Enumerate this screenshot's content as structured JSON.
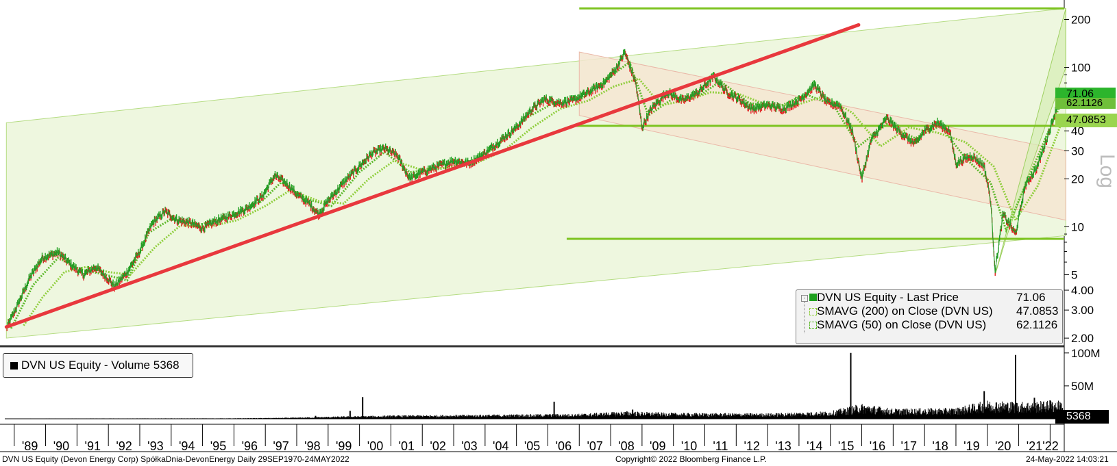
{
  "chart_data": [
    {
      "type": "line",
      "title": "",
      "ylabel": "Log",
      "yscale": "log",
      "ylim": [
        1.85,
        260
      ],
      "xlim": [
        1988.7,
        2022.45
      ],
      "y_ticks": [
        {
          "v": 2,
          "label": "2.00"
        },
        {
          "v": 3,
          "label": "3.00"
        },
        {
          "v": 4,
          "label": "4.00"
        },
        {
          "v": 5,
          "label": "5"
        },
        {
          "v": 10,
          "label": "10"
        },
        {
          "v": 20,
          "label": "20"
        },
        {
          "v": 30,
          "label": "30"
        },
        {
          "v": 40,
          "label": "40"
        },
        {
          "v": 100,
          "label": "100"
        },
        {
          "v": 200,
          "label": "200"
        }
      ],
      "x_ticks": [
        "'89",
        "'90",
        "'91",
        "'92",
        "'93",
        "'94",
        "'95",
        "'96",
        "'97",
        "'98",
        "'99",
        "'00",
        "'01",
        "'02",
        "'03",
        "'04",
        "'05",
        "'06",
        "'07",
        "'08",
        "'09",
        "'10",
        "'11",
        "'12",
        "'13",
        "'14",
        "'15",
        "'16",
        "'17",
        "'18",
        "'19",
        "'20",
        "'21",
        "'22"
      ],
      "series": [
        {
          "name": "DVN US Equity - Last Price",
          "color": "#1ea01e",
          "last": "71.06",
          "points": [
            [
              1988.75,
              2.3
            ],
            [
              1989.1,
              3.2
            ],
            [
              1989.5,
              4.8
            ],
            [
              1989.9,
              6.4
            ],
            [
              1990.4,
              6.9
            ],
            [
              1990.8,
              5.8
            ],
            [
              1991.2,
              5.0
            ],
            [
              1991.6,
              5.6
            ],
            [
              1992.0,
              4.7
            ],
            [
              1992.2,
              4.2
            ],
            [
              1992.6,
              5.2
            ],
            [
              1993.0,
              7.0
            ],
            [
              1993.4,
              10.5
            ],
            [
              1993.8,
              12.5
            ],
            [
              1994.2,
              11.0
            ],
            [
              1994.6,
              10.6
            ],
            [
              1995.0,
              9.8
            ],
            [
              1995.4,
              10.8
            ],
            [
              1995.9,
              11.8
            ],
            [
              1996.4,
              13.0
            ],
            [
              1996.9,
              15.5
            ],
            [
              1997.3,
              21.0
            ],
            [
              1997.7,
              18.5
            ],
            [
              1998.0,
              16.0
            ],
            [
              1998.4,
              14.0
            ],
            [
              1998.7,
              12.0
            ],
            [
              1999.0,
              14.5
            ],
            [
              1999.5,
              19.0
            ],
            [
              2000.0,
              24.0
            ],
            [
              2000.4,
              29.0
            ],
            [
              2000.8,
              31.0
            ],
            [
              2001.2,
              28.0
            ],
            [
              2001.6,
              20.0
            ],
            [
              2002.0,
              22.0
            ],
            [
              2002.5,
              24.0
            ],
            [
              2003.0,
              26.0
            ],
            [
              2003.5,
              25.0
            ],
            [
              2004.0,
              29.0
            ],
            [
              2004.5,
              35.0
            ],
            [
              2005.0,
              42.0
            ],
            [
              2005.5,
              55.0
            ],
            [
              2005.9,
              63.0
            ],
            [
              2006.4,
              60.0
            ],
            [
              2006.8,
              62.0
            ],
            [
              2007.3,
              70.0
            ],
            [
              2007.8,
              80.0
            ],
            [
              2008.2,
              100.0
            ],
            [
              2008.45,
              125.0
            ],
            [
              2008.8,
              80.0
            ],
            [
              2009.0,
              42.0
            ],
            [
              2009.3,
              55.0
            ],
            [
              2009.8,
              70.0
            ],
            [
              2010.3,
              62.0
            ],
            [
              2010.8,
              70.0
            ],
            [
              2011.3,
              88.0
            ],
            [
              2011.7,
              70.0
            ],
            [
              2012.0,
              65.0
            ],
            [
              2012.5,
              55.0
            ],
            [
              2013.0,
              58.0
            ],
            [
              2013.5,
              55.0
            ],
            [
              2014.0,
              62.0
            ],
            [
              2014.5,
              78.0
            ],
            [
              2014.9,
              60.0
            ],
            [
              2015.3,
              58.0
            ],
            [
              2015.7,
              40.0
            ],
            [
              2016.0,
              20.0
            ],
            [
              2016.3,
              35.0
            ],
            [
              2016.8,
              48.0
            ],
            [
              2017.3,
              38.0
            ],
            [
              2017.7,
              33.0
            ],
            [
              2018.0,
              40.0
            ],
            [
              2018.4,
              45.0
            ],
            [
              2018.8,
              40.0
            ],
            [
              2019.0,
              25.0
            ],
            [
              2019.5,
              28.0
            ],
            [
              2019.9,
              24.0
            ],
            [
              2020.1,
              15.0
            ],
            [
              2020.25,
              5.3
            ],
            [
              2020.5,
              12.0
            ],
            [
              2020.9,
              9.0
            ],
            [
              2021.2,
              18.0
            ],
            [
              2021.6,
              24.0
            ],
            [
              2021.9,
              36.0
            ],
            [
              2022.2,
              55.0
            ],
            [
              2022.4,
              71.06
            ]
          ]
        },
        {
          "name": "SMAVG (200)  on Close (DVN US)",
          "color": "#8fce3c",
          "last": "47.0853",
          "points": [
            [
              1989.3,
              2.4
            ],
            [
              1989.9,
              3.6
            ],
            [
              1990.6,
              5.2
            ],
            [
              1991.3,
              5.6
            ],
            [
              1992.0,
              5.2
            ],
            [
              1992.7,
              5.0
            ],
            [
              1993.5,
              7.5
            ],
            [
              1994.3,
              10.2
            ],
            [
              1995.2,
              10.0
            ],
            [
              1996.1,
              11.0
            ],
            [
              1997.0,
              13.5
            ],
            [
              1997.8,
              17.0
            ],
            [
              1998.7,
              14.5
            ],
            [
              1999.5,
              14.0
            ],
            [
              2000.3,
              20.0
            ],
            [
              2001.1,
              26.0
            ],
            [
              2001.9,
              23.0
            ],
            [
              2002.8,
              23.5
            ],
            [
              2003.7,
              25.0
            ],
            [
              2004.6,
              30.0
            ],
            [
              2005.5,
              42.0
            ],
            [
              2006.4,
              55.0
            ],
            [
              2007.3,
              62.0
            ],
            [
              2008.1,
              76.0
            ],
            [
              2008.9,
              85.0
            ],
            [
              2009.6,
              58.0
            ],
            [
              2010.4,
              62.0
            ],
            [
              2011.2,
              70.0
            ],
            [
              2012.1,
              68.0
            ],
            [
              2013.0,
              58.0
            ],
            [
              2013.9,
              58.0
            ],
            [
              2014.8,
              66.0
            ],
            [
              2015.7,
              52.0
            ],
            [
              2016.6,
              32.0
            ],
            [
              2017.5,
              42.0
            ],
            [
              2018.4,
              39.0
            ],
            [
              2019.3,
              34.0
            ],
            [
              2020.2,
              24.0
            ],
            [
              2020.9,
              11.0
            ],
            [
              2021.6,
              18.0
            ],
            [
              2022.4,
              47.0853
            ]
          ]
        },
        {
          "name": "SMAVG (50)  on Close (DVN US)",
          "color": "#5cb82a",
          "last": "62.1126",
          "points": [
            [
              1988.9,
              2.3
            ],
            [
              1989.6,
              4.3
            ],
            [
              1990.4,
              6.4
            ],
            [
              1991.1,
              5.4
            ],
            [
              1991.9,
              5.0
            ],
            [
              1992.6,
              4.6
            ],
            [
              1993.3,
              9.2
            ],
            [
              1994.0,
              11.2
            ],
            [
              1994.9,
              10.3
            ],
            [
              1995.9,
              11.5
            ],
            [
              1996.9,
              14.5
            ],
            [
              1997.5,
              19.0
            ],
            [
              1998.3,
              15.0
            ],
            [
              1999.1,
              13.5
            ],
            [
              2000.0,
              22.0
            ],
            [
              2000.8,
              29.5
            ],
            [
              2001.6,
              22.0
            ],
            [
              2002.5,
              23.0
            ],
            [
              2003.4,
              25.0
            ],
            [
              2004.3,
              31.0
            ],
            [
              2005.3,
              48.0
            ],
            [
              2006.2,
              60.0
            ],
            [
              2007.1,
              64.0
            ],
            [
              2008.0,
              88.0
            ],
            [
              2008.6,
              108.0
            ],
            [
              2009.2,
              50.0
            ],
            [
              2010.0,
              64.0
            ],
            [
              2010.9,
              68.0
            ],
            [
              2011.5,
              82.0
            ],
            [
              2012.4,
              60.0
            ],
            [
              2013.3,
              56.0
            ],
            [
              2014.2,
              68.0
            ],
            [
              2015.1,
              58.0
            ],
            [
              2015.9,
              32.0
            ],
            [
              2016.8,
              44.0
            ],
            [
              2017.7,
              36.0
            ],
            [
              2018.5,
              43.0
            ],
            [
              2019.3,
              27.0
            ],
            [
              2020.1,
              19.0
            ],
            [
              2020.6,
              9.5
            ],
            [
              2021.3,
              20.0
            ],
            [
              2022.0,
              42.0
            ],
            [
              2022.4,
              62.1126
            ]
          ]
        }
      ],
      "annotations": {
        "red_trendline": {
          "color": "#e8383d",
          "from": [
            1988.75,
            2.35
          ],
          "to": [
            2015.9,
            185
          ]
        },
        "outer_channel": {
          "color": "#b5dc83",
          "top": [
            [
              1988.75,
              45
            ],
            [
              2022.5,
              235
            ]
          ],
          "bottom": [
            [
              1988.75,
              2.0
            ],
            [
              2022.5,
              8.8
            ]
          ]
        },
        "falling_channel": {
          "color": "#e9c7a6",
          "top": [
            [
              2007.0,
              125
            ],
            [
              2022.5,
              30
            ]
          ],
          "bottom": [
            [
              2007.0,
              50
            ],
            [
              2022.5,
              11
            ]
          ]
        },
        "rising_channel": {
          "color": "#c3e29a",
          "points": [
            [
              2020.25,
              5.0
            ],
            [
              2022.5,
              235
            ],
            [
              2022.5,
              100
            ],
            [
              2020.6,
              8.5
            ]
          ]
        },
        "horizontal_levels": [
          {
            "v": 235,
            "from": 2007.0,
            "color": "#7cc31f"
          },
          {
            "v": 43,
            "from": 2006.9,
            "color": "#7cc31f"
          },
          {
            "v": 8.4,
            "from": 2006.6,
            "color": "#7cc31f"
          }
        ]
      }
    },
    {
      "type": "bar",
      "title": "",
      "ylim": [
        0,
        105
      ],
      "y_ticks": [
        {
          "v": 100,
          "label": "100M"
        },
        {
          "v": 50,
          "label": "50M"
        }
      ],
      "series": [
        {
          "name": "DVN US Equity - Volume",
          "color": "#000000",
          "last": "5368",
          "profile": [
            [
              1988.75,
              0.4
            ],
            [
              1996.0,
              0.6
            ],
            [
              1998.0,
              1.5
            ],
            [
              1999.5,
              3.0
            ],
            [
              2001.0,
              4.0
            ],
            [
              2004.0,
              5.0
            ],
            [
              2007.0,
              6.0
            ],
            [
              2008.5,
              9.0
            ],
            [
              2010.0,
              7.0
            ],
            [
              2013.0,
              6.5
            ],
            [
              2015.0,
              9.0
            ],
            [
              2016.0,
              18.0
            ],
            [
              2017.0,
              12.0
            ],
            [
              2019.0,
              13.0
            ],
            [
              2020.0,
              22.0
            ],
            [
              2021.0,
              20.0
            ],
            [
              2022.4,
              22.0
            ]
          ],
          "spikes": [
            [
              1998.6,
              4.5
            ],
            [
              1999.7,
              12.0
            ],
            [
              2000.1,
              33.0
            ],
            [
              2006.2,
              26.0
            ],
            [
              2008.7,
              14.0
            ],
            [
              2015.65,
              100.0
            ],
            [
              2019.9,
              42.0
            ],
            [
              2020.9,
              97.0
            ],
            [
              2021.5,
              32.0
            ],
            [
              2022.0,
              28.0
            ]
          ]
        }
      ]
    }
  ],
  "legend": {
    "rows": [
      {
        "label": "DVN US Equity - Last Price",
        "value": "71.06"
      },
      {
        "label": "SMAVG (200)  on Close (DVN US)",
        "value": "47.0853"
      },
      {
        "label": "SMAVG (50)  on Close (DVN US)",
        "value": "62.1126"
      }
    ]
  },
  "volume_legend": {
    "label": "DVN US Equity - Volume 5368"
  },
  "price_tags": {
    "last": "71.06",
    "sma50": "62.1126",
    "sma200": "47.0853"
  },
  "volume_tag": "5368",
  "footer": {
    "left": "DVN US Equity (Devon Energy Corp) SpółkaDnia-DevonEnergy  Daily 29SEP1970-24MAY2022",
    "center": "Copyright© 2022 Bloomberg Finance L.P.",
    "right": "24-May-2022 14:03:21"
  }
}
